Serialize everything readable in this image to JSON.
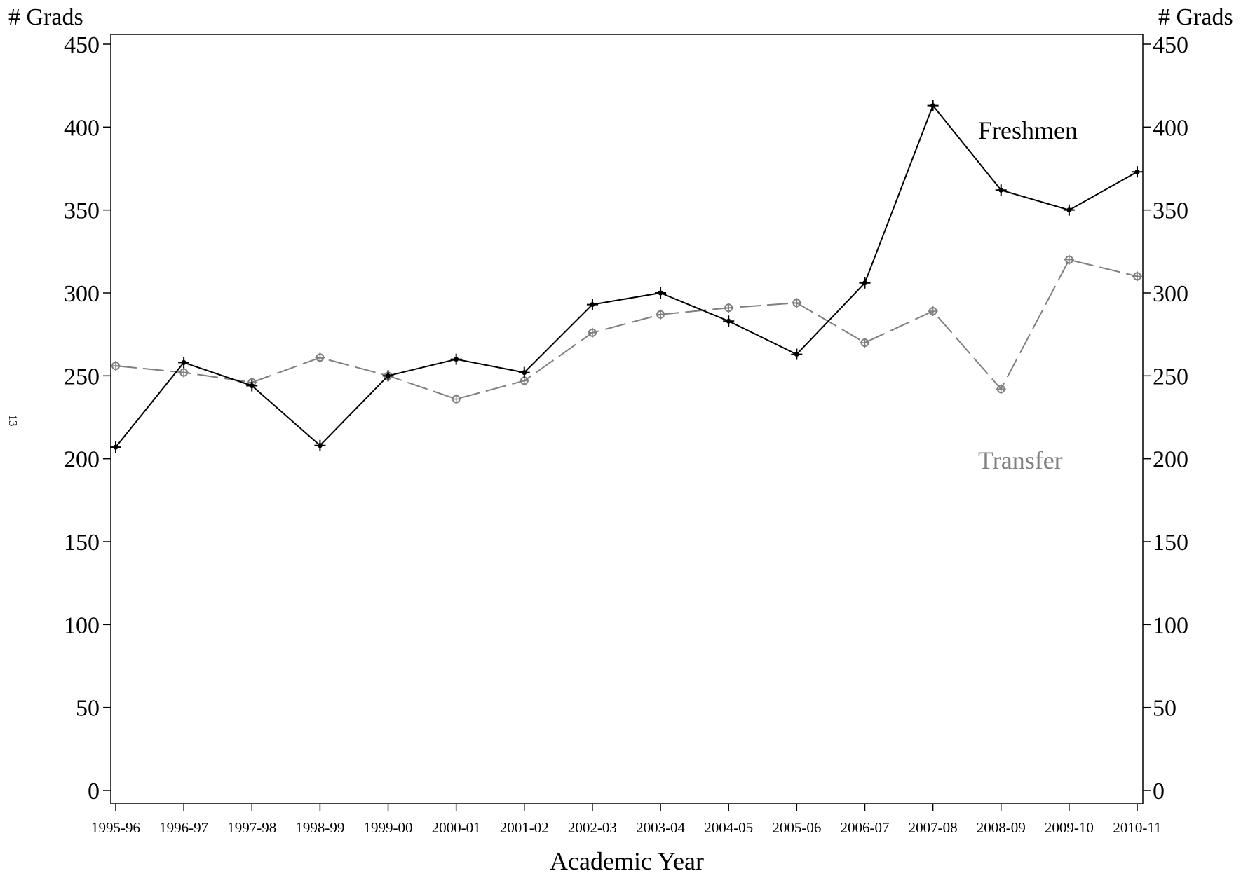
{
  "chart_data": {
    "type": "line",
    "xlabel": "Academic Year",
    "ylabel_left": "# Grads",
    "ylabel_right": "# Grads",
    "ylim": [
      0,
      450
    ],
    "yticks": [
      0,
      50,
      100,
      150,
      200,
      250,
      300,
      350,
      400,
      450
    ],
    "grid": false,
    "categories": [
      "1995-96",
      "1996-97",
      "1997-98",
      "1998-99",
      "1999-00",
      "2000-01",
      "2001-02",
      "2002-03",
      "2003-04",
      "2004-05",
      "2005-06",
      "2006-07",
      "2007-08",
      "2008-09",
      "2009-10",
      "2010-11"
    ],
    "series": [
      {
        "name": "Freshmen",
        "color": "#000000",
        "style": "solid",
        "values": [
          207,
          258,
          244,
          208,
          250,
          260,
          252,
          293,
          300,
          283,
          263,
          306,
          413,
          362,
          350,
          373
        ]
      },
      {
        "name": "Transfer",
        "color": "#808080",
        "style": "dashed",
        "values": [
          256,
          252,
          246,
          261,
          250,
          236,
          247,
          276,
          287,
          291,
          294,
          270,
          289,
          242,
          320,
          310
        ]
      }
    ]
  },
  "page_number": "13"
}
